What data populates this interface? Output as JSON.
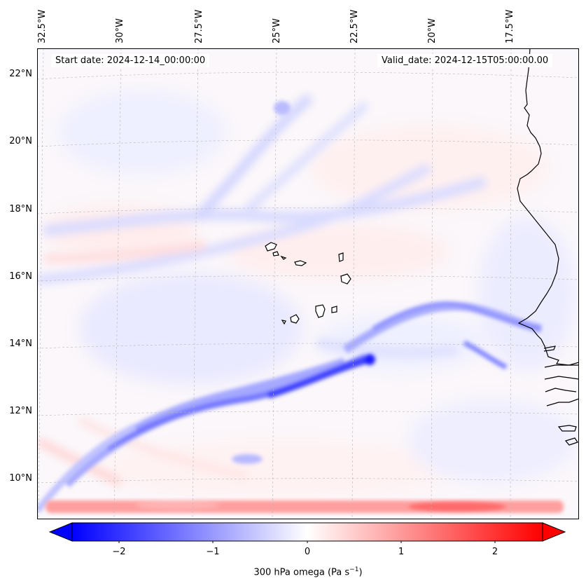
{
  "map": {
    "lon_labels": [
      "32.5°W",
      "30°W",
      "27.5°W",
      "25°W",
      "22.5°W",
      "20°W",
      "17.5°W"
    ],
    "lat_labels": [
      "22°N",
      "20°N",
      "18°N",
      "16°N",
      "14°N",
      "12°N",
      "10°N"
    ],
    "start_date_text": "Start date: 2024-12-14_00:00:00",
    "valid_date_text": "Valid_date: 2024-12-15T05:00:00.00",
    "variable": "300 hPa omega",
    "colormap": "bwr"
  },
  "colorbar": {
    "ticks": [
      "−2",
      "−1",
      "0",
      "1",
      "2"
    ],
    "tick_values": [
      -2,
      -1,
      0,
      1,
      2
    ],
    "range": [
      -2.5,
      2.5
    ],
    "extend": "both",
    "label_main": "300 hPa omega (Pa s",
    "label_exp": "−1",
    "label_close": ")",
    "color_min": "#0000ff",
    "color_mid": "#ffffff",
    "color_max": "#ff0000"
  }
}
